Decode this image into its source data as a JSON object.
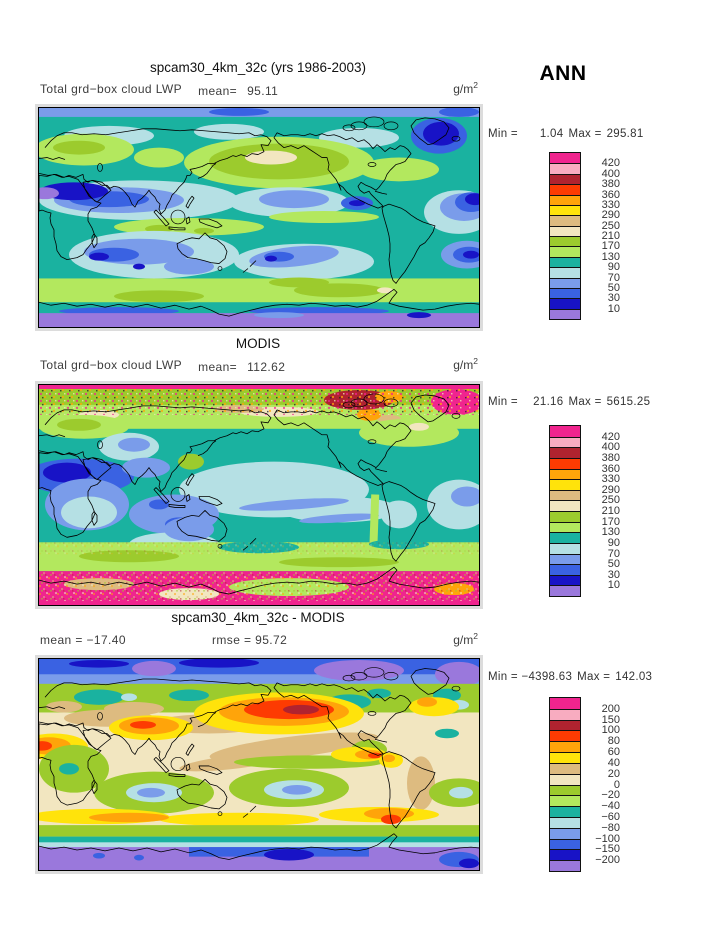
{
  "page": {
    "season_label": "ANN",
    "background": "#FFFFFF"
  },
  "panels": [
    {
      "id": "model",
      "title": "spcam30_4km_32c (yrs 1986-2003)",
      "variable_label": "Total grd−box cloud LWP",
      "mean_label": "mean=",
      "mean_value": "95.11",
      "units_base": "g/m",
      "units_exp": "2",
      "min_label": "Min =",
      "min_value": "1.04",
      "max_label": "Max =",
      "max_value": "295.81",
      "legend": {
        "levels": [
          "420",
          "400",
          "380",
          "360",
          "330",
          "290",
          "250",
          "210",
          "170",
          "130",
          "90",
          "70",
          "50",
          "30",
          "10"
        ],
        "colors": [
          "#F0248E",
          "#F8ACC0",
          "#B0232F",
          "#FD3B02",
          "#FFA40A",
          "#FFE30B",
          "#DDBB80",
          "#F2E6C0",
          "#9CCB2D",
          "#B3E85E",
          "#1AB2A0",
          "#B5E0E4",
          "#7A9CEA",
          "#3A62E2",
          "#1813C6",
          "#9A78DC"
        ]
      }
    },
    {
      "id": "modis",
      "title": "MODIS",
      "variable_label": "Total grd−box cloud LWP",
      "mean_label": "mean=",
      "mean_value": "112.62",
      "units_base": "g/m",
      "units_exp": "2",
      "min_label": "Min =",
      "min_value": "21.16",
      "max_label": "Max =",
      "max_value": "5615.25",
      "legend": {
        "levels": [
          "420",
          "400",
          "380",
          "360",
          "330",
          "290",
          "250",
          "210",
          "170",
          "130",
          "90",
          "70",
          "50",
          "30",
          "10"
        ],
        "colors": [
          "#F0248E",
          "#F8ACC0",
          "#B0232F",
          "#FD3B02",
          "#FFA40A",
          "#FFE30B",
          "#DDBB80",
          "#F2E6C0",
          "#9CCB2D",
          "#B3E85E",
          "#1AB2A0",
          "#B5E0E4",
          "#7A9CEA",
          "#3A62E2",
          "#1813C6",
          "#9A78DC"
        ]
      }
    },
    {
      "id": "difference",
      "title": "spcam30_4km_32c - MODIS",
      "mean_label": "mean =",
      "mean_value": "−17.40",
      "rmse_label": "rmse =",
      "rmse_value": "95.72",
      "units_base": "g/m",
      "units_exp": "2",
      "min_label": "Min =",
      "min_value": "−4398.63",
      "max_label": "Max =",
      "max_value": "142.03",
      "legend": {
        "levels": [
          "200",
          "150",
          "100",
          "80",
          "60",
          "40",
          "20",
          "0",
          "−20",
          "−40",
          "−60",
          "−80",
          "−100",
          "−150",
          "−200"
        ],
        "colors": [
          "#F0248E",
          "#F8ACC0",
          "#B0232F",
          "#FD3B02",
          "#FFA40A",
          "#FFE30B",
          "#DDBB80",
          "#F2E6C0",
          "#9CCB2D",
          "#B3E85E",
          "#1AB2A0",
          "#B5E0E4",
          "#7A9CEA",
          "#3A62E2",
          "#1813C6",
          "#9A78DC"
        ]
      }
    }
  ],
  "chart_data": [
    {
      "type": "heatmap",
      "title": "spcam30_4km_32c (yrs 1986-2003)",
      "subtitle": "Total grd-box cloud LWP",
      "season": "ANN",
      "units": "g/m^2",
      "projection": "global equirectangular lat-lon",
      "stats": {
        "mean": 95.11,
        "min": 1.04,
        "max": 295.81
      },
      "contour_levels": [
        10,
        30,
        50,
        70,
        90,
        130,
        170,
        210,
        250,
        290,
        330,
        360,
        380,
        400,
        420
      ],
      "palette_top_to_bottom": [
        "#F0248E",
        "#F8ACC0",
        "#B0232F",
        "#FD3B02",
        "#FFA40A",
        "#FFE30B",
        "#DDBB80",
        "#F2E6C0",
        "#9CCB2D",
        "#B3E85E",
        "#1AB2A0",
        "#B5E0E4",
        "#7A9CEA",
        "#3A62E2",
        "#1813C6",
        "#9A78DC"
      ]
    },
    {
      "type": "heatmap",
      "title": "MODIS",
      "subtitle": "Total grd-box cloud LWP",
      "season": "ANN",
      "units": "g/m^2",
      "projection": "global equirectangular lat-lon",
      "stats": {
        "mean": 112.62,
        "min": 21.16,
        "max": 5615.25
      },
      "contour_levels": [
        10,
        30,
        50,
        70,
        90,
        130,
        170,
        210,
        250,
        290,
        330,
        360,
        380,
        400,
        420
      ],
      "palette_top_to_bottom": [
        "#F0248E",
        "#F8ACC0",
        "#B0232F",
        "#FD3B02",
        "#FFA40A",
        "#FFE30B",
        "#DDBB80",
        "#F2E6C0",
        "#9CCB2D",
        "#B3E85E",
        "#1AB2A0",
        "#B5E0E4",
        "#7A9CEA",
        "#3A62E2",
        "#1813C6",
        "#9A78DC"
      ]
    },
    {
      "type": "heatmap",
      "title": "spcam30_4km_32c - MODIS",
      "season": "ANN",
      "units": "g/m^2",
      "projection": "global equirectangular lat-lon",
      "stats": {
        "mean": -17.4,
        "rmse": 95.72,
        "min": -4398.63,
        "max": 142.03
      },
      "contour_levels": [
        -200,
        -150,
        -100,
        -80,
        -60,
        -40,
        -20,
        0,
        20,
        40,
        60,
        80,
        100,
        150,
        200
      ],
      "palette_top_to_bottom": [
        "#F0248E",
        "#F8ACC0",
        "#B0232F",
        "#FD3B02",
        "#FFA40A",
        "#FFE30B",
        "#DDBB80",
        "#F2E6C0",
        "#9CCB2D",
        "#B3E85E",
        "#1AB2A0",
        "#B5E0E4",
        "#7A9CEA",
        "#3A62E2",
        "#1813C6",
        "#9A78DC"
      ]
    }
  ]
}
